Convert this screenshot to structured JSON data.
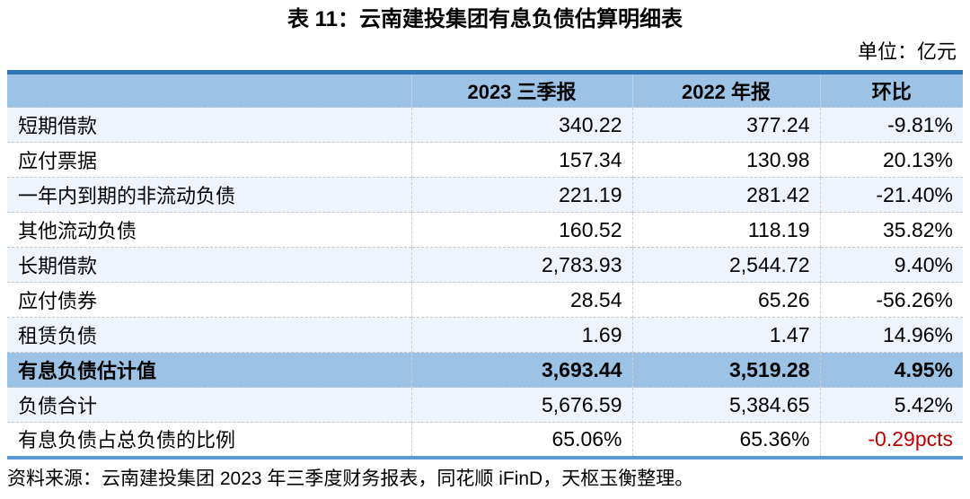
{
  "page": {
    "title": "表 11：云南建投集团有息负债估算明细表",
    "unit_note": "单位：亿元",
    "source_note": "资料来源：云南建投集团 2023 年三季度财务报表，同花顺 iFinD，天枢玉衡整理。"
  },
  "table": {
    "columns": [
      "",
      "2023 三季报",
      "2022 年报",
      "环比"
    ],
    "rows": [
      {
        "label": "短期借款",
        "values": [
          "340.22",
          "377.24",
          "-9.81%"
        ],
        "highlight": false,
        "change_red": false
      },
      {
        "label": "应付票据",
        "values": [
          "157.34",
          "130.98",
          "20.13%"
        ],
        "highlight": false,
        "change_red": false
      },
      {
        "label": "一年内到期的非流动负债",
        "values": [
          "221.19",
          "281.42",
          "-21.40%"
        ],
        "highlight": false,
        "change_red": false
      },
      {
        "label": "其他流动负债",
        "values": [
          "160.52",
          "118.19",
          "35.82%"
        ],
        "highlight": false,
        "change_red": false
      },
      {
        "label": "长期借款",
        "values": [
          "2,783.93",
          "2,544.72",
          "9.40%"
        ],
        "highlight": false,
        "change_red": false
      },
      {
        "label": "应付债券",
        "values": [
          "28.54",
          "65.26",
          "-56.26%"
        ],
        "highlight": false,
        "change_red": false
      },
      {
        "label": "租赁负债",
        "values": [
          "1.69",
          "1.47",
          "14.96%"
        ],
        "highlight": false,
        "change_red": false
      },
      {
        "label": "有息负债估计值",
        "values": [
          "3,693.44",
          "3,519.28",
          "4.95%"
        ],
        "highlight": true,
        "change_red": false
      },
      {
        "label": "负债合计",
        "values": [
          "5,676.59",
          "5,384.65",
          "5.42%"
        ],
        "highlight": false,
        "change_red": false
      },
      {
        "label": "有息负债占总负债的比例",
        "values": [
          "65.06%",
          "65.36%",
          "-0.29pcts"
        ],
        "highlight": false,
        "change_red": true
      }
    ]
  },
  "colors": {
    "header_bg": "#9CC3E6",
    "stripe_bg": "#EDF4FB",
    "top_rule": "#2E74B5",
    "bottom_rule": "#5B9BD5",
    "negative_red": "#C00000"
  }
}
